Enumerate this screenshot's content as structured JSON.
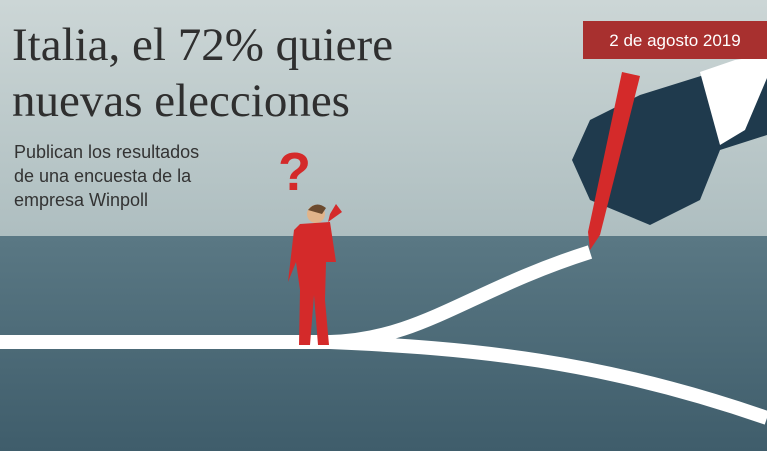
{
  "header": {
    "title": [
      "Italia, el 72% quiere",
      "nuevas elecciones"
    ],
    "subtitle": [
      "Publican los resultados",
      "de una encuesta de la",
      "empresa Winpoll"
    ],
    "date": "2 de agosto 2019"
  }
}
